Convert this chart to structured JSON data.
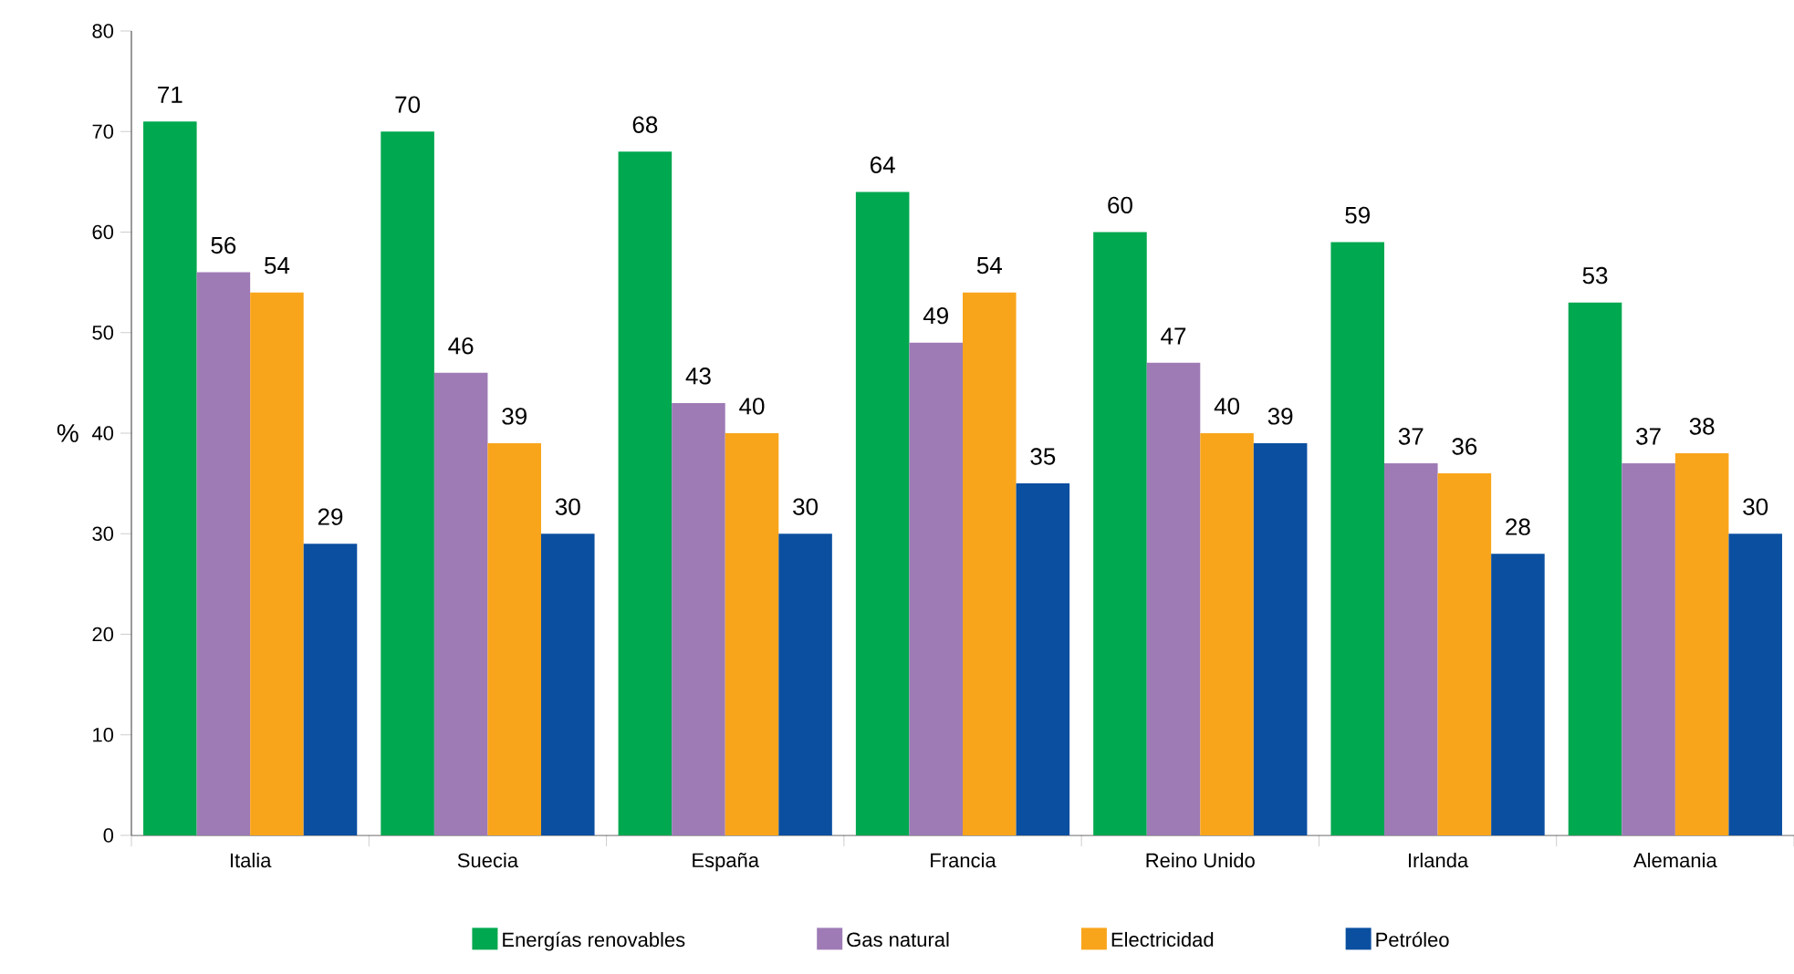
{
  "chart_data": {
    "type": "bar",
    "ylabel": "%",
    "categories": [
      "Italia",
      "Suecia",
      "España",
      "Francia",
      "Reino Unido",
      "Irlanda",
      "Alemania"
    ],
    "series": [
      {
        "name": "Energías renovables",
        "color": "#00a84f",
        "values": [
          71,
          70,
          68,
          64,
          60,
          59,
          53
        ]
      },
      {
        "name": "Gas natural",
        "color": "#9e7bb5",
        "values": [
          56,
          46,
          43,
          49,
          47,
          37,
          37
        ]
      },
      {
        "name": "Electricidad",
        "color": "#f9a51b",
        "values": [
          54,
          39,
          40,
          54,
          40,
          36,
          38
        ]
      },
      {
        "name": "Petróleo",
        "color": "#0b4fa0",
        "values": [
          29,
          30,
          30,
          35,
          39,
          28,
          30
        ]
      }
    ],
    "ylim": [
      0,
      80
    ],
    "yticks": [
      0,
      10,
      20,
      30,
      40,
      50,
      60,
      70,
      80
    ],
    "data_labels": true,
    "legend": "bottom"
  }
}
